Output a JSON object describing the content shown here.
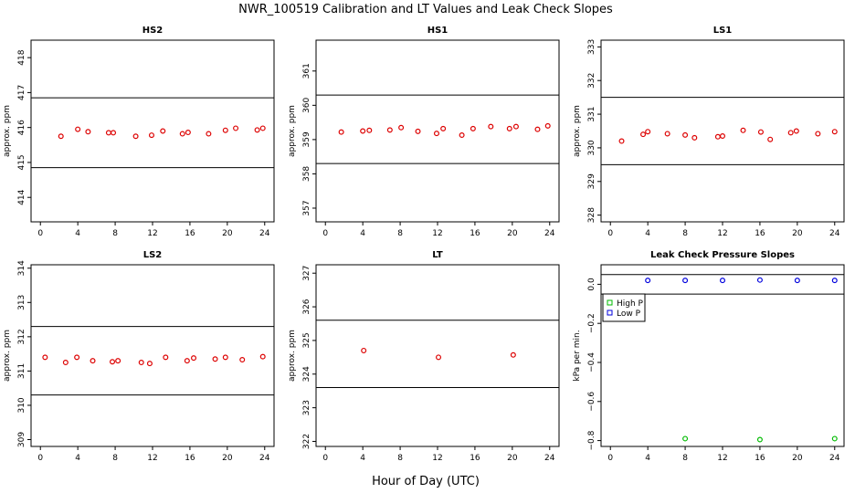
{
  "title": "NWR_100519  Calibration and LT Values and Leak Check Slopes",
  "x_axis_label": "Hour of Day (UTC)",
  "colors": {
    "cal_points": "#dd0000",
    "high_p": "#00bb00",
    "low_p": "#0000dd",
    "frame": "#000000"
  },
  "chart_data": [
    {
      "type": "scatter",
      "title": "HS2",
      "ylabel": "approx. ppm",
      "xlim": [
        -1,
        25
      ],
      "ylim": [
        413.3,
        418.5
      ],
      "x_ticks": [
        0,
        4,
        8,
        12,
        16,
        20,
        24
      ],
      "y_ticks": [
        414,
        415,
        416,
        417,
        418
      ],
      "reference_lines": [
        416.85,
        414.85
      ],
      "x": [
        2.2,
        4.0,
        5.1,
        7.3,
        7.8,
        10.2,
        11.9,
        13.1,
        15.2,
        15.8,
        18.0,
        19.8,
        20.9,
        23.2,
        23.8
      ],
      "y": [
        415.75,
        415.95,
        415.88,
        415.85,
        415.85,
        415.75,
        415.78,
        415.9,
        415.82,
        415.86,
        415.82,
        415.92,
        415.98,
        415.93,
        415.98
      ]
    },
    {
      "type": "scatter",
      "title": "HS1",
      "ylabel": "approx. ppm",
      "xlim": [
        -1,
        25
      ],
      "ylim": [
        356.6,
        361.9
      ],
      "x_ticks": [
        0,
        4,
        8,
        12,
        16,
        20,
        24
      ],
      "y_ticks": [
        357,
        358,
        359,
        360,
        361
      ],
      "reference_lines": [
        360.3,
        358.3
      ],
      "x": [
        1.7,
        4.0,
        4.7,
        6.9,
        8.1,
        9.9,
        11.9,
        12.6,
        14.6,
        15.8,
        17.7,
        19.7,
        20.4,
        22.7,
        23.8
      ],
      "y": [
        359.22,
        359.25,
        359.27,
        359.28,
        359.35,
        359.24,
        359.18,
        359.32,
        359.13,
        359.32,
        359.38,
        359.32,
        359.38,
        359.3,
        359.4
      ]
    },
    {
      "type": "scatter",
      "title": "LS1",
      "ylabel": "approx. ppm",
      "xlim": [
        -1,
        25
      ],
      "ylim": [
        327.8,
        333.2
      ],
      "x_ticks": [
        0,
        4,
        8,
        12,
        16,
        20,
        24
      ],
      "y_ticks": [
        328,
        329,
        330,
        331,
        332,
        333
      ],
      "reference_lines": [
        331.5,
        329.5
      ],
      "x": [
        1.2,
        3.5,
        4.0,
        6.1,
        8.0,
        9.0,
        11.5,
        12.0,
        14.2,
        16.1,
        17.1,
        19.3,
        19.9,
        22.2,
        24.0
      ],
      "y": [
        330.2,
        330.4,
        330.48,
        330.42,
        330.38,
        330.3,
        330.33,
        330.35,
        330.52,
        330.47,
        330.25,
        330.45,
        330.5,
        330.42,
        330.48
      ]
    },
    {
      "type": "scatter",
      "title": "LS2",
      "ylabel": "approx. ppm",
      "xlim": [
        -1,
        25
      ],
      "ylim": [
        308.8,
        314.1
      ],
      "x_ticks": [
        0,
        4,
        8,
        12,
        16,
        20,
        24
      ],
      "y_ticks": [
        309,
        310,
        311,
        312,
        313,
        314
      ],
      "reference_lines": [
        312.3,
        310.3
      ],
      "x": [
        0.5,
        2.7,
        3.9,
        5.6,
        7.7,
        8.3,
        10.8,
        11.7,
        13.4,
        15.7,
        16.4,
        18.7,
        19.8,
        21.6,
        23.8
      ],
      "y": [
        311.4,
        311.25,
        311.4,
        311.3,
        311.27,
        311.3,
        311.25,
        311.22,
        311.4,
        311.3,
        311.38,
        311.35,
        311.4,
        311.33,
        311.42
      ]
    },
    {
      "type": "scatter",
      "title": "LT",
      "ylabel": "approx. ppm",
      "xlim": [
        -1,
        25
      ],
      "ylim": [
        321.85,
        327.25
      ],
      "x_ticks": [
        0,
        4,
        8,
        12,
        16,
        20,
        24
      ],
      "y_ticks": [
        322,
        323,
        324,
        325,
        326,
        327
      ],
      "reference_lines": [
        325.6,
        323.6
      ],
      "x": [
        4.1,
        12.1,
        20.1
      ],
      "y": [
        324.7,
        324.5,
        324.57
      ]
    },
    {
      "type": "scatter",
      "title": "Leak Check Pressure Slopes",
      "ylabel": "kPa per min.",
      "xlim": [
        -1,
        25
      ],
      "ylim": [
        -0.83,
        0.1
      ],
      "x_ticks": [
        0,
        4,
        8,
        12,
        16,
        20,
        24
      ],
      "y_ticks": [
        0.0,
        -0.2,
        -0.4,
        -0.6,
        -0.8
      ],
      "y_tick_labels": [
        "0.0",
        "−0.2",
        "−0.4",
        "−0.6",
        "−0.8"
      ],
      "reference_lines": [
        0.05,
        -0.05
      ],
      "legend": "top-left",
      "series": [
        {
          "name": "High P",
          "color": "#00bb00",
          "x": [
            8.0,
            16.0,
            24.0
          ],
          "y": [
            -0.79,
            -0.795,
            -0.79
          ]
        },
        {
          "name": "Low P",
          "color": "#0000dd",
          "x": [
            4.0,
            8.0,
            12.0,
            16.0,
            20.0,
            24.0
          ],
          "y": [
            0.02,
            0.02,
            0.02,
            0.022,
            0.02,
            0.02
          ]
        }
      ]
    }
  ]
}
